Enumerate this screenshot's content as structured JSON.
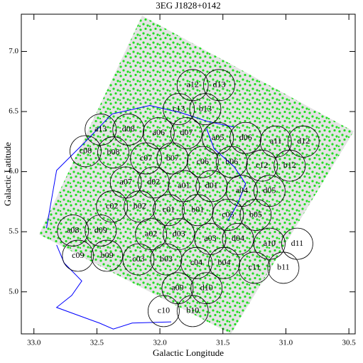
{
  "chart_data": {
    "type": "scatter",
    "title": "3EG J1828+0142",
    "xlabel": "Galactic Longitude",
    "ylabel": "Galactic Latitude",
    "xlim": [
      33.1,
      30.45
    ],
    "ylim": [
      4.65,
      7.31
    ],
    "xticks": [
      {
        "value": 33,
        "label": "33.0"
      },
      32.5,
      {
        "value": 32,
        "label": "32.0"
      },
      31.5,
      {
        "value": 31,
        "label": "31.0"
      },
      30.5
    ],
    "yticks": [
      {
        "value": 5,
        "label": "5.0"
      },
      5.5,
      {
        "value": 6,
        "label": "6.0"
      },
      6.5,
      {
        "value": 7,
        "label": "7.0"
      }
    ],
    "color": "#000000",
    "radius": 0.13,
    "point_labels": [
      "a12",
      "d13",
      "c13",
      "b13",
      "a13",
      "d08",
      "a06",
      "d07",
      "a05",
      "d06",
      "a11",
      "d12",
      "c08",
      "b08",
      "c07",
      "b07",
      "c06",
      "b06",
      "c12",
      "b12",
      "a07",
      "d02",
      "a01",
      "d01",
      "a04",
      "d05",
      "c02",
      "b02",
      "c01",
      "b01",
      "c05",
      "b05",
      "a08",
      "d09",
      "a02",
      "d03",
      "a03",
      "d04",
      "a10",
      "d11",
      "c09",
      "b09",
      "c03",
      "b03",
      "c04",
      "b04",
      "c11",
      "b11",
      "a09",
      "d10",
      "c10",
      "b10"
    ],
    "x": [
      31.74,
      31.53,
      31.85,
      31.64,
      32.47,
      32.25,
      32.01,
      31.79,
      31.54,
      31.32,
      31.08,
      30.86,
      32.59,
      32.37,
      32.11,
      31.9,
      31.66,
      31.43,
      31.19,
      30.97,
      32.27,
      32.05,
      31.81,
      31.59,
      31.35,
      31.13,
      32.38,
      32.16,
      31.93,
      31.7,
      31.46,
      31.24,
      32.69,
      32.47,
      32.07,
      31.85,
      31.6,
      31.38,
      31.13,
      30.91,
      32.65,
      32.42,
      32.17,
      31.95,
      31.71,
      31.49,
      31.25,
      31.02,
      31.86,
      31.63,
      31.97,
      31.74
    ],
    "values": [
      6.72,
      6.72,
      6.52,
      6.52,
      6.35,
      6.35,
      6.32,
      6.32,
      6.28,
      6.28,
      6.25,
      6.25,
      6.17,
      6.16,
      6.11,
      6.11,
      6.08,
      6.08,
      6.05,
      6.05,
      5.91,
      5.91,
      5.88,
      5.88,
      5.84,
      5.84,
      5.71,
      5.71,
      5.68,
      5.68,
      5.64,
      5.64,
      5.51,
      5.51,
      5.48,
      5.48,
      5.44,
      5.44,
      5.4,
      5.4,
      5.3,
      5.3,
      5.27,
      5.27,
      5.24,
      5.24,
      5.2,
      5.2,
      5.03,
      5.03,
      4.84,
      4.84
    ],
    "contour_color": "#0000ff",
    "contour_x": [
      32.9,
      32.82,
      32.6,
      32.38,
      32.08,
      31.83,
      31.63,
      31.41,
      null,
      31.63,
      31.57,
      31.41,
      31.32,
      31.38,
      31.46,
      null,
      32.82,
      32.76,
      32.62,
      32.7,
      32.82,
      32.48,
      32.37,
      32.22,
      31.91
    ],
    "contour_values": [
      5.53,
      6.01,
      6.24,
      6.48,
      6.55,
      6.49,
      6.42,
      6.37,
      null,
      6.36,
      6.19,
      6.04,
      5.9,
      5.74,
      5.59,
      null,
      5.39,
      5.24,
      5.09,
      4.97,
      4.87,
      4.74,
      4.69,
      4.74,
      4.75
    ]
  }
}
